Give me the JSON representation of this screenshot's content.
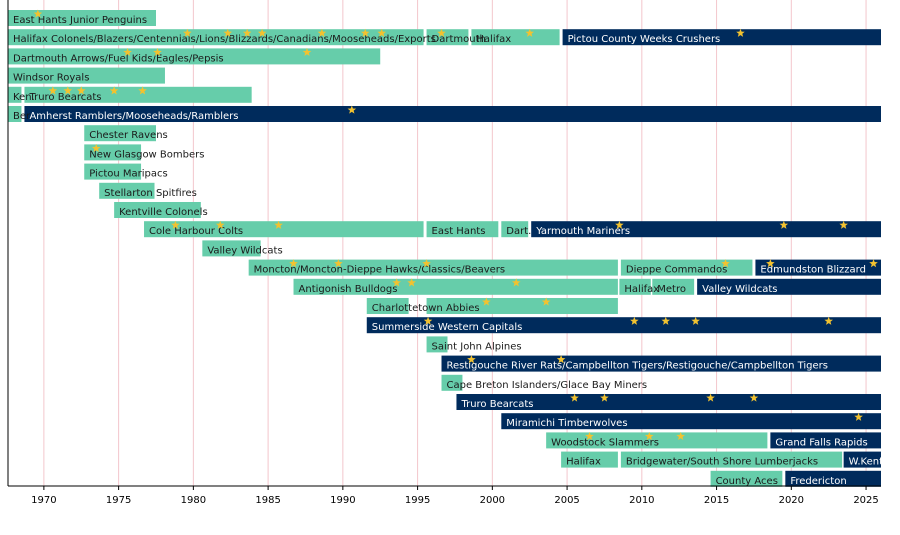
{
  "chart_data": {
    "type": "timeline",
    "xlim": [
      1967.6,
      2026
    ],
    "xticks": [
      1970,
      1975,
      1980,
      1985,
      1990,
      1995,
      2000,
      2005,
      2010,
      2015,
      2020,
      2025
    ],
    "grid": true,
    "star_color": "#f2c230",
    "rows": [
      {
        "segments": [
          {
            "label": "East Hants Junior Penguins",
            "start": 1967.6,
            "end": 1977.5,
            "color": "#66cdaa"
          }
        ],
        "stars": [
          1969.6
        ]
      },
      {
        "segments": [
          {
            "label": "Halifax Colonels/Blazers/Centennials/Lions/Blizzards/Canadians/Mooseheads/Exports",
            "start": 1967.6,
            "end": 1995.4,
            "color": "#66cdaa"
          },
          {
            "label": "Dartmouth",
            "start": 1995.6,
            "end": 1998.4,
            "color": "#66cdaa"
          },
          {
            "label": "Halifax",
            "start": 1998.6,
            "end": 2004.5,
            "color": "#66cdaa"
          },
          {
            "label": "Pictou County Weeks Crushers",
            "start": 2004.7,
            "end": 2026,
            "color": "#002b5c"
          }
        ],
        "stars": [
          1979.6,
          1982.3,
          1983.6,
          1984.6,
          1988.6,
          1991.5,
          1992.6,
          1996.6,
          2002.5,
          2016.6
        ]
      },
      {
        "segments": [
          {
            "label": "Dartmouth Arrows/Fuel Kids/Eagles/Pepsis",
            "start": 1967.6,
            "end": 1992.5,
            "color": "#66cdaa"
          }
        ],
        "stars": [
          1975.6,
          1977.6,
          1987.6
        ]
      },
      {
        "segments": [
          {
            "label": "Windsor Royals",
            "start": 1967.6,
            "end": 1978.1,
            "color": "#66cdaa"
          }
        ],
        "stars": []
      },
      {
        "segments": [
          {
            "label": "Ken.",
            "start": 1967.6,
            "end": 1968.5,
            "color": "#66cdaa"
          },
          {
            "label": "Truro Bearcats",
            "start": 1968.7,
            "end": 1983.9,
            "color": "#66cdaa"
          }
        ],
        "stars": [
          1970.6,
          1971.6,
          1972.5,
          1974.7,
          1976.6
        ]
      },
      {
        "segments": [
          {
            "label": "Ber.",
            "start": 1967.6,
            "end": 1968.5,
            "color": "#66cdaa"
          },
          {
            "label": "Amherst Ramblers/Mooseheads/Ramblers",
            "start": 1968.7,
            "end": 2026,
            "color": "#002b5c"
          }
        ],
        "stars": [
          1990.6
        ]
      },
      {
        "segments": [
          {
            "label": "Chester Ravens",
            "start": 1972.7,
            "end": 1977.5,
            "color": "#66cdaa"
          }
        ],
        "stars": []
      },
      {
        "segments": [
          {
            "label": "New Glasgow Bombers",
            "start": 1972.7,
            "end": 1976.5,
            "color": "#66cdaa"
          }
        ],
        "stars": [
          1973.5
        ]
      },
      {
        "segments": [
          {
            "label": "Pictou Maripacs",
            "start": 1972.7,
            "end": 1976.5,
            "color": "#66cdaa"
          }
        ],
        "stars": []
      },
      {
        "segments": [
          {
            "label": "Stellarton Spitfires",
            "start": 1973.7,
            "end": 1977.4,
            "color": "#66cdaa"
          }
        ],
        "stars": []
      },
      {
        "segments": [
          {
            "label": "Kentville Colonels",
            "start": 1974.7,
            "end": 1980.5,
            "color": "#66cdaa"
          }
        ],
        "stars": []
      },
      {
        "segments": [
          {
            "label": "Cole Harbour Colts",
            "start": 1976.7,
            "end": 1995.4,
            "color": "#66cdaa"
          },
          {
            "label": "East Hants",
            "start": 1995.6,
            "end": 2000.4,
            "color": "#66cdaa"
          },
          {
            "label": "Dart.",
            "start": 2000.6,
            "end": 2002.4,
            "color": "#66cdaa"
          },
          {
            "label": "Yarmouth Mariners",
            "start": 2002.6,
            "end": 2026,
            "color": "#002b5c"
          }
        ],
        "stars": [
          1978.8,
          1981.8,
          1985.7,
          2008.5,
          2019.5,
          2023.5
        ]
      },
      {
        "segments": [
          {
            "label": "Valley Wildcats",
            "start": 1980.6,
            "end": 1984.5,
            "color": "#66cdaa"
          }
        ],
        "stars": []
      },
      {
        "segments": [
          {
            "label": "Moncton/Moncton-Dieppe Hawks/Classics/Beavers",
            "start": 1983.7,
            "end": 2008.4,
            "color": "#66cdaa"
          },
          {
            "label": "Dieppe Commandos",
            "start": 2008.6,
            "end": 2017.4,
            "color": "#66cdaa"
          },
          {
            "label": "Edmundston Blizzard",
            "start": 2017.6,
            "end": 2026,
            "color": "#002b5c"
          }
        ],
        "stars": [
          1986.7,
          1989.7,
          1995.6,
          2015.6,
          2018.6,
          2025.5
        ]
      },
      {
        "segments": [
          {
            "label": "Antigonish Bulldogs",
            "start": 1986.7,
            "end": 2008.4,
            "color": "#66cdaa"
          },
          {
            "label": "Halifax",
            "start": 2008.5,
            "end": 2010.6,
            "color": "#66cdaa"
          },
          {
            "label": "Metro",
            "start": 2010.7,
            "end": 2013.5,
            "color": "#66cdaa"
          },
          {
            "label": "Valley Wildcats",
            "start": 2013.7,
            "end": 2026,
            "color": "#002b5c"
          }
        ],
        "stars": [
          1993.6,
          1994.6,
          2001.6
        ]
      },
      {
        "segments": [
          {
            "label": "Charlottetown Abbies",
            "start": 1991.6,
            "end": 1994.4,
            "color": "#66cdaa"
          },
          {
            "label": null,
            "start": 1995.6,
            "end": 2008.4,
            "color": "#66cdaa"
          }
        ],
        "stars": [
          1999.6,
          2003.6
        ]
      },
      {
        "segments": [
          {
            "label": "Summerside Western Capitals",
            "start": 1991.6,
            "end": 2026,
            "color": "#002b5c"
          }
        ],
        "stars": [
          1995.7,
          2009.5,
          2011.6,
          2013.6,
          2022.5
        ]
      },
      {
        "segments": [
          {
            "label": "Saint John Alpines",
            "start": 1995.6,
            "end": 1997.0,
            "color": "#66cdaa"
          }
        ],
        "stars": []
      },
      {
        "segments": [
          {
            "label": "Restigouche River Rats/Campbellton Tigers/Restigouche/Campbellton Tigers",
            "start": 1996.6,
            "end": 2026,
            "color": "#002b5c"
          }
        ],
        "stars": [
          1998.6,
          2004.6
        ]
      },
      {
        "segments": [
          {
            "label": "Cape Breton Islanders/Glace Bay Miners",
            "start": 1996.6,
            "end": 1998.0,
            "color": "#66cdaa"
          }
        ],
        "stars": []
      },
      {
        "segments": [
          {
            "label": "Truro Bearcats",
            "start": 1997.6,
            "end": 2026,
            "color": "#002b5c"
          }
        ],
        "stars": [
          2005.5,
          2007.5,
          2014.6,
          2017.5
        ]
      },
      {
        "segments": [
          {
            "label": "Miramichi Timberwolves",
            "start": 2000.6,
            "end": 2026,
            "color": "#002b5c"
          }
        ],
        "stars": [
          2024.5
        ]
      },
      {
        "segments": [
          {
            "label": "Woodstock Slammers",
            "start": 2003.6,
            "end": 2018.4,
            "color": "#66cdaa"
          },
          {
            "label": "Grand Falls Rapids",
            "start": 2018.6,
            "end": 2026,
            "color": "#002b5c"
          }
        ],
        "stars": [
          2006.5,
          2010.5,
          2012.6
        ]
      },
      {
        "segments": [
          {
            "label": "Halifax",
            "start": 2004.6,
            "end": 2008.4,
            "color": "#66cdaa"
          },
          {
            "label": "Bridgewater/South Shore Lumberjacks",
            "start": 2008.6,
            "end": 2023.4,
            "color": "#66cdaa"
          },
          {
            "label": "W.Kent",
            "start": 2023.5,
            "end": 2026,
            "color": "#002b5c"
          }
        ],
        "stars": []
      },
      {
        "segments": [
          {
            "label": "County Aces",
            "start": 2014.6,
            "end": 2019.4,
            "color": "#66cdaa"
          },
          {
            "label": "Fredericton",
            "start": 2019.6,
            "end": 2026,
            "color": "#002b5c"
          }
        ],
        "stars": []
      }
    ]
  }
}
